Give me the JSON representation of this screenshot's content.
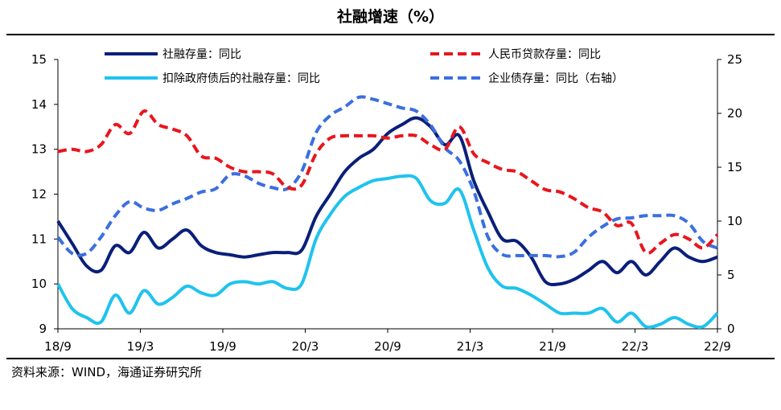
{
  "chart_data": {
    "type": "line",
    "title": "社融增速（%）",
    "source": "资料来源：WIND，海通证券研究所",
    "x_labels": [
      "18/9",
      "19/3",
      "19/9",
      "20/3",
      "20/9",
      "21/3",
      "21/9",
      "22/3",
      "22/9"
    ],
    "y_left": {
      "min": 9,
      "max": 15,
      "ticks": [
        "9",
        "10",
        "11",
        "12",
        "13",
        "14",
        "15"
      ]
    },
    "y_right": {
      "min": 0,
      "max": 25,
      "ticks": [
        "0",
        "5",
        "10",
        "15",
        "20",
        "25"
      ]
    },
    "legend_sep": "：",
    "series": [
      {
        "name": "社融存量",
        "suffix": "同比",
        "axis": "left",
        "color": "#0a1f7a",
        "dash": false,
        "values": [
          11.4,
          10.9,
          10.4,
          10.3,
          10.85,
          10.7,
          11.15,
          10.8,
          11.0,
          11.2,
          10.85,
          10.7,
          10.65,
          10.6,
          10.65,
          10.7,
          10.7,
          10.75,
          11.5,
          12.0,
          12.5,
          12.8,
          13.0,
          13.35,
          13.55,
          13.7,
          13.5,
          13.1,
          13.3,
          12.3,
          11.6,
          11.0,
          10.95,
          10.6,
          10.05,
          10.0,
          10.1,
          10.3,
          10.5,
          10.25,
          10.5,
          10.2,
          10.5,
          10.8,
          10.6,
          10.5,
          10.6
        ]
      },
      {
        "name": "人民币贷款存量",
        "suffix": "同比",
        "axis": "left",
        "color": "#e8161d",
        "dash": true,
        "values": [
          12.95,
          13.0,
          12.95,
          13.1,
          13.55,
          13.35,
          13.85,
          13.55,
          13.45,
          13.3,
          12.85,
          12.8,
          12.6,
          12.5,
          12.5,
          12.45,
          12.15,
          12.2,
          12.9,
          13.25,
          13.3,
          13.3,
          13.3,
          13.25,
          13.3,
          13.3,
          13.1,
          13.0,
          13.5,
          12.9,
          12.7,
          12.55,
          12.5,
          12.3,
          12.1,
          12.05,
          11.9,
          11.7,
          11.6,
          11.3,
          11.35,
          10.7,
          10.9,
          11.1,
          11.0,
          10.8,
          11.1
        ]
      },
      {
        "name": "扣除政府债后的社融存量",
        "suffix": "同比",
        "axis": "left",
        "color": "#1fc3ee",
        "dash": false,
        "values": [
          10.0,
          9.45,
          9.25,
          9.15,
          9.75,
          9.35,
          9.85,
          9.55,
          9.7,
          9.95,
          9.8,
          9.75,
          10.0,
          10.05,
          10.0,
          10.05,
          9.9,
          10.0,
          11.0,
          11.55,
          11.95,
          12.15,
          12.3,
          12.35,
          12.4,
          12.35,
          11.85,
          11.8,
          12.1,
          11.2,
          10.35,
          9.95,
          9.9,
          9.75,
          9.55,
          9.35,
          9.35,
          9.35,
          9.45,
          9.15,
          9.35,
          9.05,
          9.1,
          9.25,
          9.1,
          9.05,
          9.35
        ]
      },
      {
        "name": "企业债存量",
        "suffix": "同比（右轴）",
        "axis": "right",
        "color": "#3b6fe0",
        "dash": true,
        "values": [
          8.5,
          7.0,
          7.0,
          8.5,
          10.5,
          11.8,
          11.2,
          11.0,
          11.6,
          12.1,
          12.7,
          13.0,
          14.3,
          14.2,
          13.5,
          13.1,
          13.0,
          14.6,
          18.2,
          19.8,
          20.6,
          21.5,
          21.3,
          20.9,
          20.5,
          20.2,
          18.9,
          16.8,
          15.6,
          12.8,
          8.5,
          6.9,
          6.8,
          6.8,
          6.8,
          6.7,
          7.1,
          8.5,
          9.5,
          10.2,
          10.3,
          10.5,
          10.5,
          10.5,
          9.8,
          8.1,
          7.5
        ]
      }
    ]
  }
}
